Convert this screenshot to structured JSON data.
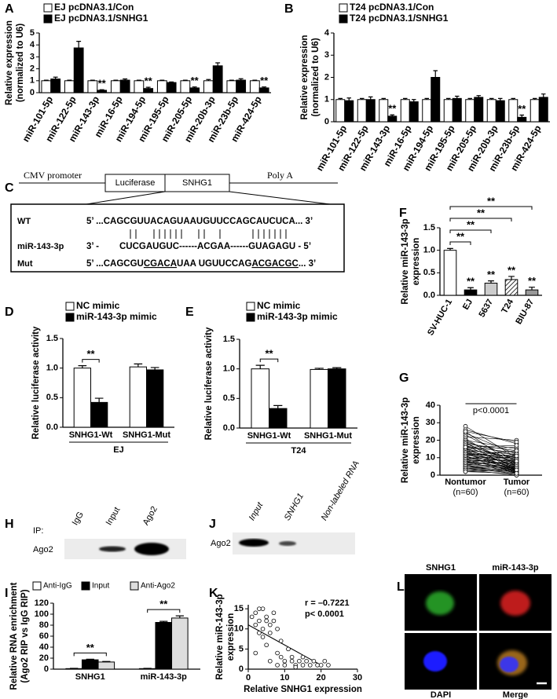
{
  "chart_data": [
    {
      "type": "bar",
      "categories": [
        "miR-101-5p",
        "miR-122-5p",
        "miR-143-3p",
        "miR-16-5p",
        "miR-194-5p",
        "miR-195-5p",
        "miR-205-5p",
        "miR-20b-3p",
        "miR-23b-5p",
        "miR-424-5p"
      ],
      "series": [
        {
          "name": "EJ pcDNA3.1/Con",
          "color": "#ffffff",
          "values": [
            1,
            1,
            1,
            1,
            1,
            1,
            1,
            1,
            1,
            1
          ],
          "errors": [
            0.05,
            0.05,
            0.05,
            0.05,
            0.05,
            0.05,
            0.05,
            0.1,
            0.05,
            0.05
          ]
        },
        {
          "name": "EJ pcDNA3.1/SNHG1",
          "color": "#000000",
          "values": [
            1.15,
            3.75,
            0.2,
            1.05,
            0.35,
            0.85,
            0.4,
            2.25,
            1.05,
            0.4
          ],
          "errors": [
            0.15,
            0.55,
            0.05,
            0.1,
            0.1,
            0.05,
            0.08,
            0.25,
            0.12,
            0.08
          ],
          "significance": [
            null,
            null,
            "**",
            null,
            "**",
            null,
            "**",
            null,
            null,
            "**"
          ]
        }
      ],
      "ylabel": [
        "Relative expression",
        "(normalized to U6)"
      ],
      "ylim": [
        0,
        5
      ],
      "yticks": [
        0,
        1,
        2,
        3,
        4,
        5
      ],
      "grid": false
    },
    {
      "type": "bar",
      "categories": [
        "miR-101-5p",
        "miR-122-5p",
        "miR-143-3p",
        "miR-16-5p",
        "miR-194-5p",
        "miR-195-5p",
        "miR-205-5p",
        "miR-20b-3p",
        "miR-23b-5p",
        "miR-424-5p"
      ],
      "series": [
        {
          "name": "T24 pcDNA3.1/Con",
          "color": "#ffffff",
          "values": [
            1,
            1,
            1,
            1,
            1,
            1,
            1,
            1,
            1,
            1
          ],
          "errors": [
            0.05,
            0.05,
            0.05,
            0.05,
            0.05,
            0.05,
            0.05,
            0.05,
            0.05,
            0.05
          ]
        },
        {
          "name": "T24 pcDNA3.1/SNHG1",
          "color": "#000000",
          "values": [
            0.95,
            1.0,
            0.25,
            0.9,
            2.0,
            1.05,
            1.1,
            0.95,
            0.2,
            1.1
          ],
          "errors": [
            0.12,
            0.12,
            0.06,
            0.1,
            0.3,
            0.1,
            0.08,
            0.1,
            0.1,
            0.15
          ],
          "significance": [
            null,
            null,
            "**",
            null,
            null,
            null,
            null,
            null,
            "**",
            null
          ]
        }
      ],
      "ylabel": [
        "Relative expression",
        "(normalized to U6)"
      ],
      "ylim": [
        0,
        4
      ],
      "yticks": [
        0,
        1,
        2,
        3,
        4
      ],
      "grid": false
    },
    {
      "type": "bar",
      "categories": [
        "SNHG1-Wt",
        "SNHG1-Mut"
      ],
      "xlabel": "EJ",
      "series": [
        {
          "name": "NC mimic",
          "color": "#ffffff",
          "values": [
            1.0,
            1.02
          ],
          "errors": [
            0.04,
            0.05
          ]
        },
        {
          "name": "miR-143-3p mimic",
          "color": "#000000",
          "values": [
            0.42,
            0.97
          ],
          "errors": [
            0.07,
            0.04
          ]
        }
      ],
      "significance": [
        "**",
        null
      ],
      "ylabel": [
        "Relative luciferase activity"
      ],
      "ylim": [
        0,
        1.5
      ],
      "yticks": [
        {
          "value": 0,
          "label": "0.0"
        },
        {
          "value": 0.5,
          "label": "0.5"
        },
        {
          "value": 1,
          "label": "1.0"
        },
        {
          "value": 1.5,
          "label": "1.5"
        }
      ],
      "grid": false
    },
    {
      "type": "bar",
      "categories": [
        "SNHG1-Wt",
        "SNHG1-Mut"
      ],
      "xlabel": "T24",
      "series": [
        {
          "name": "NC mimic",
          "color": "#ffffff",
          "values": [
            1.0,
            0.99
          ],
          "errors": [
            0.06,
            0.02
          ]
        },
        {
          "name": "miR-143-3p mimic",
          "color": "#000000",
          "values": [
            0.33,
            1.0
          ],
          "errors": [
            0.05,
            0.02
          ]
        }
      ],
      "significance": [
        "**",
        null
      ],
      "ylabel": [
        "Relative luciferase activity"
      ],
      "ylim": [
        0,
        1.5
      ],
      "yticks": [
        {
          "value": 0,
          "label": "0.0"
        },
        {
          "value": 0.5,
          "label": "0.5"
        },
        {
          "value": 1,
          "label": "1.0"
        },
        {
          "value": 1.5,
          "label": "1.5"
        }
      ],
      "grid": false
    },
    {
      "type": "bar",
      "categories": [
        "SV-HUC-1",
        "EJ",
        "5637",
        "T24",
        "BIU-87"
      ],
      "values": [
        1.0,
        0.12,
        0.27,
        0.35,
        0.12
      ],
      "errors": [
        0.04,
        0.05,
        0.05,
        0.07,
        0.06
      ],
      "colors": [
        "#ffffff",
        "#000000",
        "#cccccc",
        "hatch",
        "#999999"
      ],
      "significance": [
        null,
        "**",
        "**",
        "**",
        "**"
      ],
      "ylabel": [
        "Relative miR-143-3p",
        "expression"
      ],
      "ylim": [
        0,
        1.5
      ],
      "yticks": [
        {
          "value": 0,
          "label": "0.0"
        },
        {
          "value": 0.5,
          "label": "0.5"
        },
        {
          "value": 1,
          "label": "1.0"
        },
        {
          "value": 1.5,
          "label": "1.5"
        }
      ],
      "grid": false
    },
    {
      "type": "paired",
      "annotation": "p<0.0001",
      "groups": [
        {
          "label": "Nontumor",
          "n_label": "(n=60)",
          "values": [
            28,
            26,
            25,
            24,
            23,
            22,
            21,
            20,
            20,
            19,
            19,
            18,
            18,
            17,
            17,
            16,
            16,
            15,
            15,
            15,
            14,
            14,
            14,
            13,
            13,
            13,
            12,
            12,
            12,
            11,
            11,
            11,
            10,
            10,
            10,
            9,
            9,
            9,
            8,
            8,
            8,
            7,
            7,
            7,
            6,
            6,
            6,
            5,
            5,
            5,
            4,
            4,
            4,
            3,
            3,
            3,
            2,
            2,
            25,
            16
          ]
        },
        {
          "label": "Tumor",
          "n_label": "(n=60)",
          "values": [
            10,
            18,
            5,
            12,
            8,
            20,
            3,
            15,
            6,
            11,
            2,
            14,
            7,
            9,
            4,
            13,
            1,
            10,
            5,
            16,
            3,
            8,
            12,
            6,
            2,
            9,
            11,
            4,
            7,
            1,
            14,
            3,
            8,
            5,
            10,
            2,
            6,
            12,
            4,
            9,
            1,
            7,
            3,
            11,
            5,
            0,
            8,
            2,
            6,
            4,
            1,
            3,
            5,
            2,
            0,
            4,
            1,
            3,
            19,
            17
          ]
        }
      ],
      "ylabel": [
        "Relative miR-143-3p",
        "expression"
      ],
      "ylim": [
        0,
        40
      ],
      "yticks": [
        0,
        10,
        20,
        30,
        40
      ],
      "grid": false
    },
    {
      "type": "bar",
      "categories": [
        "SNHG1",
        "miR-143-3p"
      ],
      "series": [
        {
          "name": "Anti-IgG",
          "color": "#ffffff",
          "values": [
            1,
            1
          ],
          "errors": [
            0.5,
            0.5
          ]
        },
        {
          "name": "Input",
          "color": "#000000",
          "values": [
            17,
            85
          ],
          "errors": [
            1,
            2
          ]
        },
        {
          "name": "Anti-Ago2",
          "color": "#dddddd",
          "values": [
            13,
            93
          ],
          "errors": [
            1,
            4
          ]
        }
      ],
      "significance": [
        "**",
        "**"
      ],
      "ylabel": [
        "Relative RNA enrichment",
        "(Ago2 RIP vs IgG RIP)"
      ],
      "ylim": [
        0,
        120
      ],
      "yticks": [
        0,
        20,
        40,
        60,
        80,
        100,
        120
      ],
      "grid": false
    },
    {
      "type": "scatter",
      "annotations": [
        "r = –0.7221",
        "p< 0.0001"
      ],
      "x": [
        1,
        2,
        2,
        3,
        3,
        4,
        4,
        5,
        5,
        6,
        6,
        7,
        7,
        8,
        8,
        9,
        9,
        10,
        11,
        12,
        12,
        13,
        14,
        15,
        15,
        16,
        17,
        18,
        19,
        20,
        21,
        22,
        2,
        3,
        5,
        6,
        8,
        10,
        13,
        4
      ],
      "y": [
        13,
        11,
        14,
        9,
        12,
        15,
        10,
        13,
        6,
        11,
        9,
        12,
        14,
        4,
        10,
        3,
        7,
        2,
        5,
        2,
        3,
        1,
        2,
        1,
        3,
        2,
        1,
        2,
        1,
        1,
        2,
        1,
        4,
        15,
        12,
        2,
        1,
        1,
        0.5,
        8
      ],
      "trend": {
        "x": [
          0,
          20
        ],
        "y": [
          11,
          1
        ]
      },
      "xlabel": "Relative SNHG1 expression",
      "ylabel": [
        "Relative miR-143-3p",
        "expression"
      ],
      "xlim": [
        0,
        30
      ],
      "xticks": [
        0,
        10,
        20,
        30
      ],
      "ylim": [
        0,
        16
      ],
      "yticks": [
        0,
        5,
        10,
        15
      ],
      "grid": false
    }
  ],
  "panel_labels": [
    "A",
    "B",
    "C",
    "D",
    "E",
    "F",
    "G",
    "H",
    "I",
    "J",
    "K",
    "L"
  ],
  "construct": {
    "promoter": "CMV promoter",
    "luciferase": "Luciferase",
    "insert": "SNHG1",
    "polya": "Poly A"
  },
  "alignment": {
    "rows": [
      {
        "label": "WT",
        "parts": [
          "5’ ...CAGCGUUACAGUAAUGUUCCAGCAUCUCA... 3’"
        ]
      },
      {
        "label": "miR-143-3p",
        "parts": [
          "3’ -",
          "CUCGAUGUC------ACGAA------GUAGAGU - 5’"
        ]
      },
      {
        "label": "Mut",
        "parts": [
          "5’ ...CAGCGU",
          "CGACA",
          "UAA UGUUCCAG",
          "ACGACGC",
          "... 3’"
        ]
      }
    ]
  },
  "blot_h": {
    "ip_label": "IP:",
    "lanes": [
      "IgG",
      "Input",
      "Ago2"
    ],
    "row": "Ago2"
  },
  "blot_j": {
    "lanes": [
      "Input",
      "SNHG1",
      "Non-labeled RNA"
    ],
    "row": "Ago2"
  },
  "microscopy": {
    "panels": [
      "SNHG1",
      "miR-143-3p",
      "DAPI",
      "Merge"
    ]
  }
}
